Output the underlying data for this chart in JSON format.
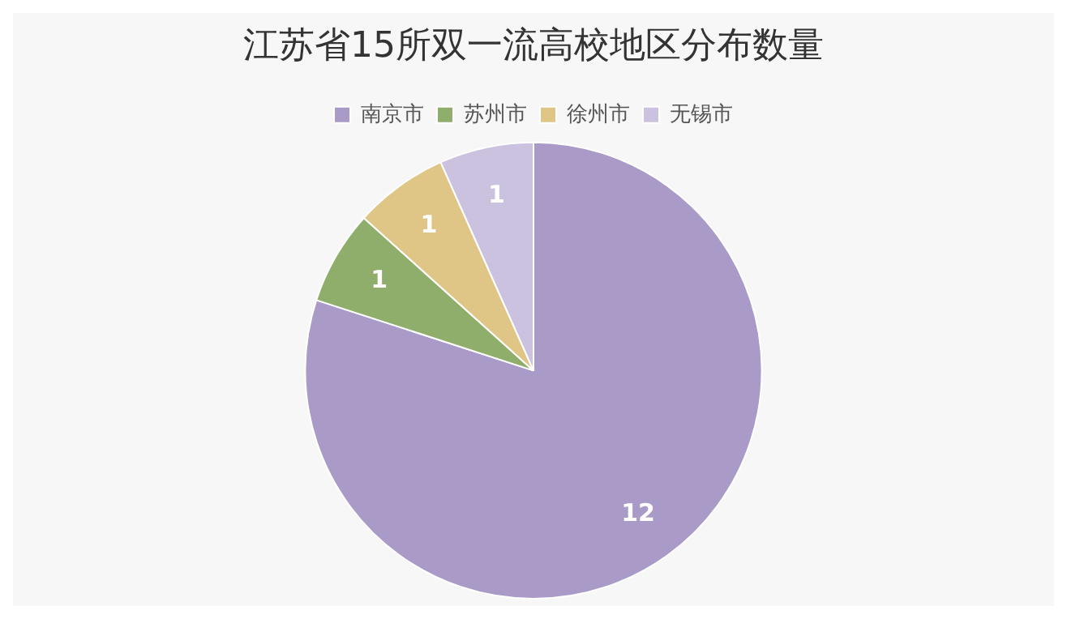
{
  "chart_data": {
    "type": "pie",
    "title": "江苏省15所双一流高校地区分布数量",
    "categories": [
      "南京市",
      "苏州市",
      "徐州市",
      "无锡市"
    ],
    "values": [
      12,
      1,
      1,
      1
    ],
    "colors": [
      "#a99ac8",
      "#8fae6b",
      "#e0c686",
      "#cbc2df"
    ],
    "legend": "top",
    "data_labels": true
  }
}
